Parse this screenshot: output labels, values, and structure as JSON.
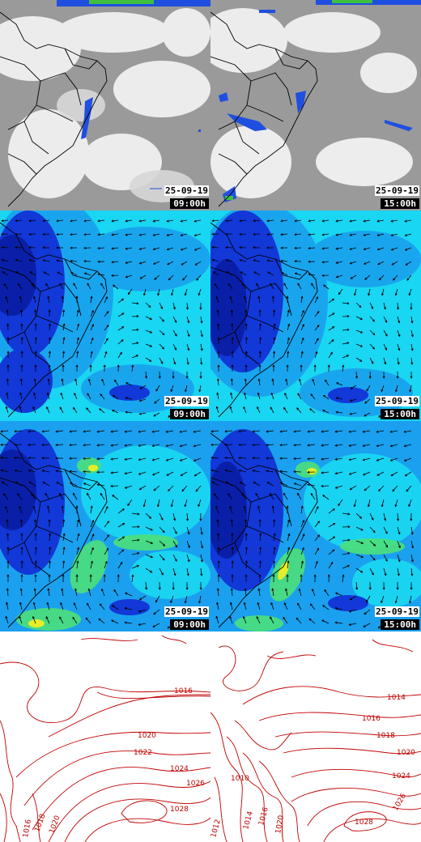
{
  "panels": [
    {
      "row": "satellite",
      "col": 0,
      "date": "25-09-19",
      "time": "09:00h"
    },
    {
      "row": "satellite",
      "col": 1,
      "date": "25-09-19",
      "time": "15:00h"
    },
    {
      "row": "wind-low",
      "col": 0,
      "date": "25-09-19",
      "time": "09:00h"
    },
    {
      "row": "wind-low",
      "col": 1,
      "date": "25-09-19",
      "time": "15:00h"
    },
    {
      "row": "wind-high",
      "col": 0,
      "date": "25-09-19",
      "time": "09:00h"
    },
    {
      "row": "wind-high",
      "col": 1,
      "date": "25-09-19",
      "time": "15:00h"
    },
    {
      "row": "pressure",
      "col": 0
    },
    {
      "row": "pressure",
      "col": 1
    }
  ],
  "pressure_left_labels": [
    "1016",
    "1020",
    "1022",
    "1024",
    "1026",
    "1028",
    "1018",
    "1020",
    "1016"
  ],
  "pressure_right_labels": [
    "1014",
    "1016",
    "1018",
    "1020",
    "1024",
    "1026",
    "1028",
    "1010",
    "1012",
    "1014",
    "1016",
    "1020"
  ],
  "colors": {
    "satellite_bg": "#9a9a9a",
    "cloud": "#f2f2f2",
    "precip_blue": "#1f4fe0",
    "precip_green": "#3fbf3f",
    "wind_cyan": "#19d6f2",
    "wind_mid": "#1aa0ee",
    "wind_deep": "#1238d8",
    "wind_navy": "#0a1fa8",
    "wind_green": "#4ce07a",
    "wind_yellow": "#e6ee2a",
    "isobar": "#c00000",
    "border": "#000000"
  }
}
